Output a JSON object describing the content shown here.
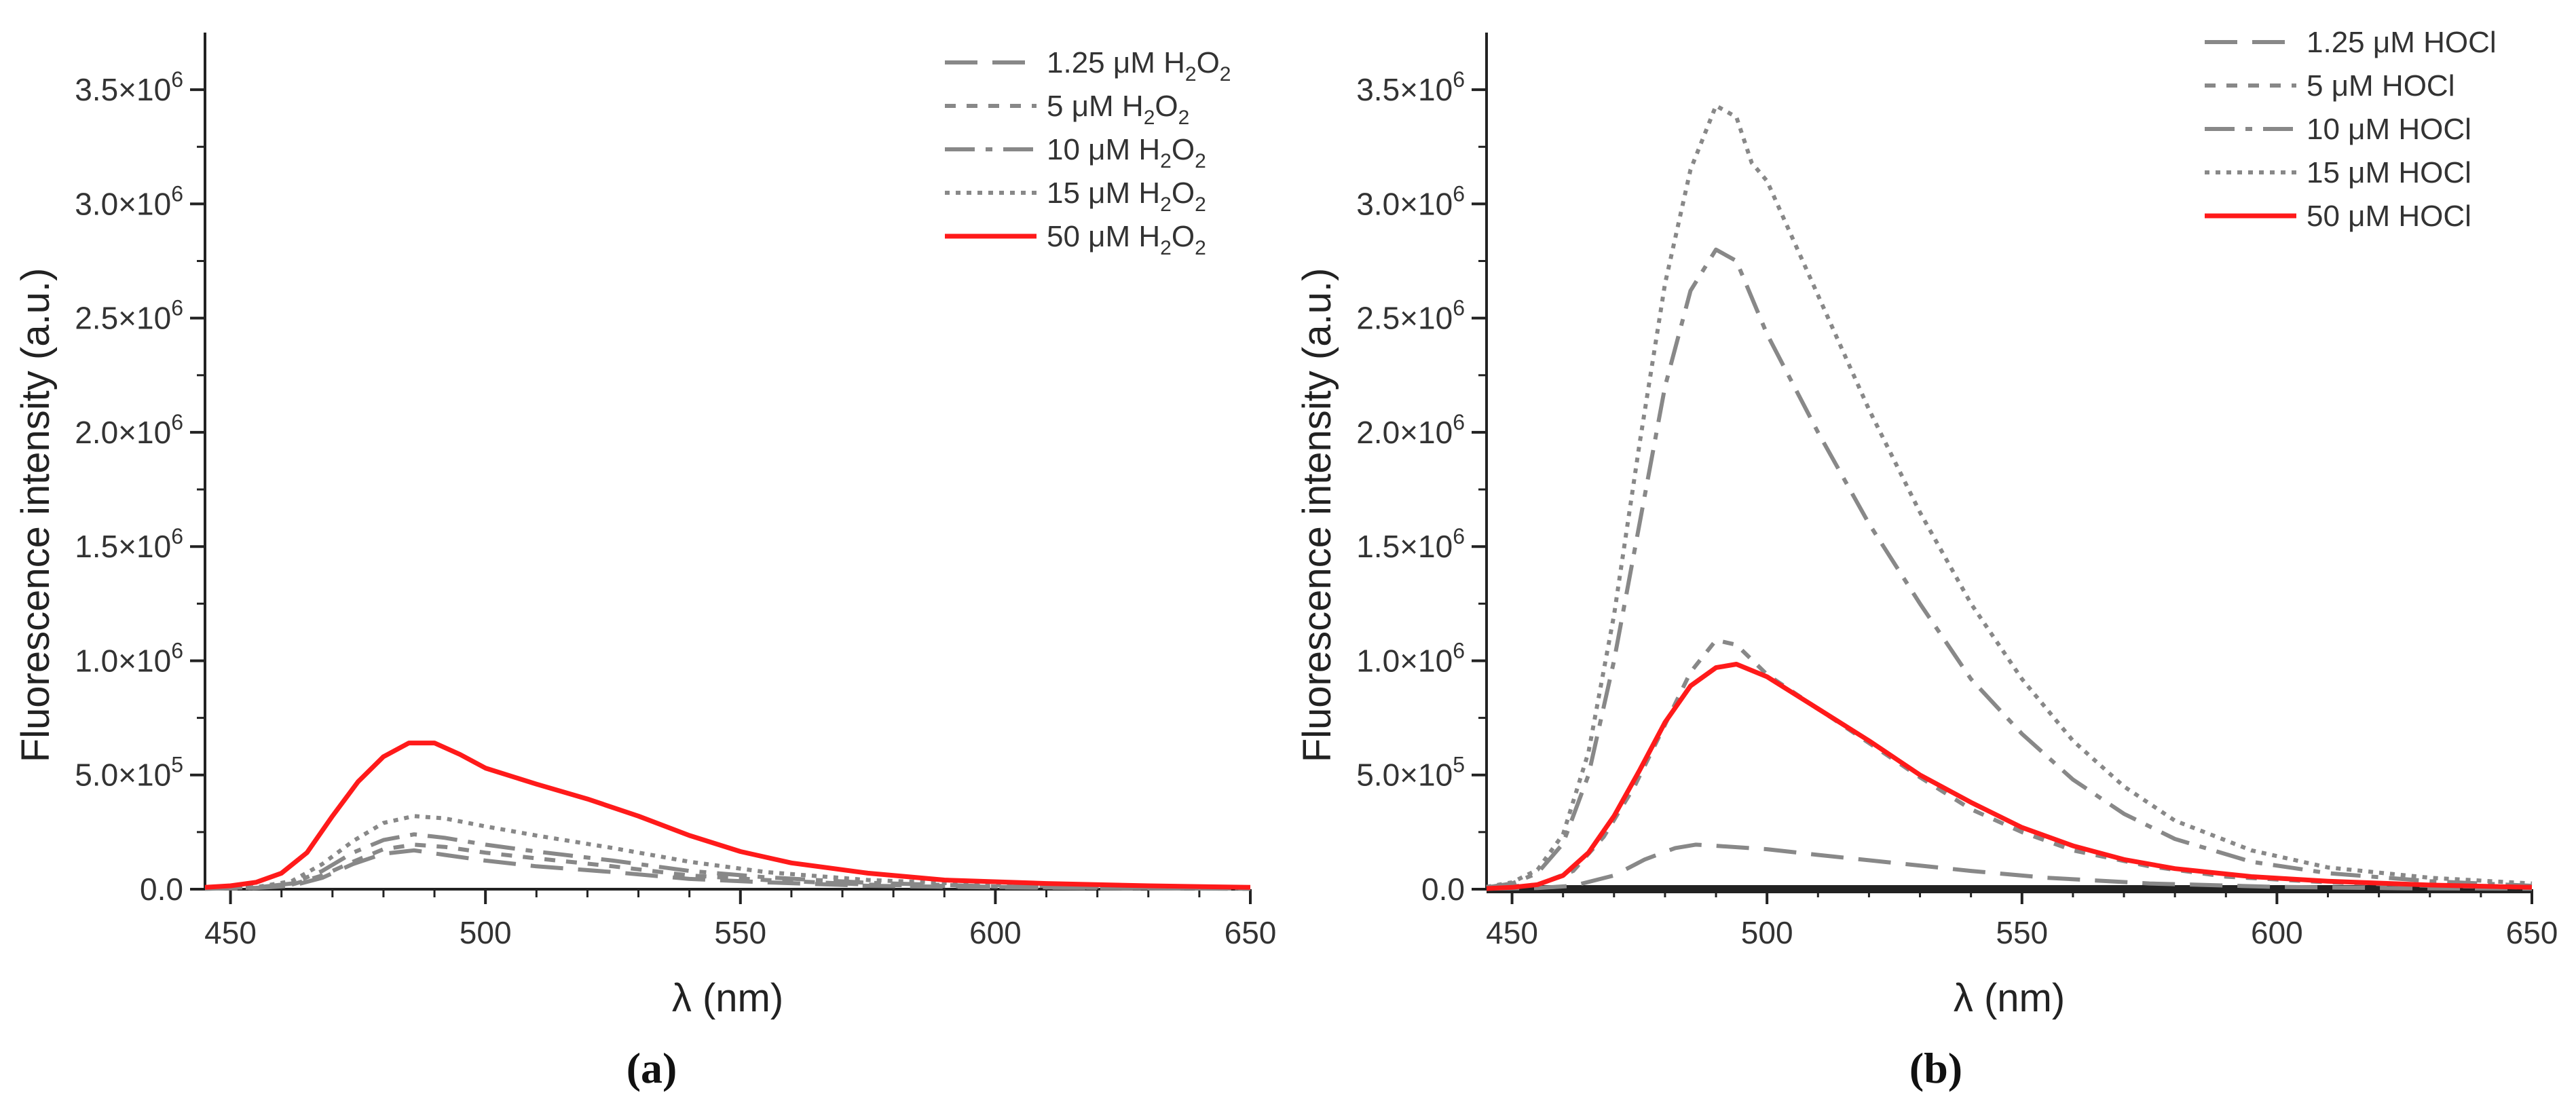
{
  "chart_data": [
    {
      "panel": "(a)",
      "type": "line",
      "title": "",
      "xlabel": "λ (nm)",
      "ylabel": "Fluorescence intensity (a.u.)",
      "xlim": [
        445,
        650
      ],
      "ylim": [
        0,
        3750000
      ],
      "x_ticks": [
        450,
        500,
        550,
        600,
        650
      ],
      "x_tick_labels": [
        "450",
        "500",
        "550",
        "600",
        "650"
      ],
      "y_ticks": [
        0,
        500000,
        1000000,
        1500000,
        2000000,
        2500000,
        3000000,
        3500000
      ],
      "y_tick_mantissas": [
        "0.0",
        "5.0×10",
        "1.0×10",
        "1.5×10",
        "2.0×10",
        "2.5×10",
        "3.0×10",
        "3.5×10"
      ],
      "y_tick_exponents": [
        "",
        "5",
        "6",
        "6",
        "6",
        "6",
        "6",
        "6"
      ],
      "legend_position": "top-right",
      "series": [
        {
          "name": "1.25 μM H2O2",
          "label_parts": [
            "1.25 μM H",
            "2",
            "O",
            "2"
          ],
          "style": "dash",
          "color": "#888888",
          "points": [
            [
              445,
              2000
            ],
            [
              455,
              5000
            ],
            [
              462,
              15000
            ],
            [
              468,
              50000
            ],
            [
              474,
              110000
            ],
            [
              480,
              155000
            ],
            [
              486,
              170000
            ],
            [
              492,
              150000
            ],
            [
              500,
              125000
            ],
            [
              510,
              100000
            ],
            [
              525,
              75000
            ],
            [
              540,
              45000
            ],
            [
              555,
              30000
            ],
            [
              575,
              15000
            ],
            [
              600,
              8000
            ],
            [
              625,
              4000
            ],
            [
              650,
              2000
            ]
          ]
        },
        {
          "name": "5 μM H2O2",
          "label_parts": [
            "5 μM H",
            "2",
            "O",
            "2"
          ],
          "style": "shortdash",
          "color": "#888888",
          "points": [
            [
              445,
              2000
            ],
            [
              455,
              6000
            ],
            [
              462,
              20000
            ],
            [
              468,
              60000
            ],
            [
              474,
              120000
            ],
            [
              480,
              175000
            ],
            [
              486,
              195000
            ],
            [
              492,
              185000
            ],
            [
              500,
              160000
            ],
            [
              510,
              135000
            ],
            [
              525,
              100000
            ],
            [
              540,
              60000
            ],
            [
              555,
              40000
            ],
            [
              575,
              20000
            ],
            [
              600,
              10000
            ],
            [
              625,
              5000
            ],
            [
              650,
              2000
            ]
          ]
        },
        {
          "name": "10 μM H2O2",
          "label_parts": [
            "10 μM H",
            "2",
            "O",
            "2"
          ],
          "style": "dashdot",
          "color": "#888888",
          "points": [
            [
              445,
              2000
            ],
            [
              455,
              7000
            ],
            [
              462,
              25000
            ],
            [
              468,
              80000
            ],
            [
              474,
              160000
            ],
            [
              480,
              215000
            ],
            [
              486,
              240000
            ],
            [
              492,
              225000
            ],
            [
              500,
              195000
            ],
            [
              510,
              165000
            ],
            [
              525,
              125000
            ],
            [
              540,
              80000
            ],
            [
              555,
              52000
            ],
            [
              575,
              28000
            ],
            [
              600,
              12000
            ],
            [
              625,
              6000
            ],
            [
              650,
              2500
            ]
          ]
        },
        {
          "name": "15 μM H2O2",
          "label_parts": [
            "15 μM H",
            "2",
            "O",
            "2"
          ],
          "style": "dot",
          "color": "#888888",
          "points": [
            [
              445,
              3000
            ],
            [
              455,
              9000
            ],
            [
              462,
              35000
            ],
            [
              468,
              110000
            ],
            [
              474,
              210000
            ],
            [
              480,
              290000
            ],
            [
              486,
              320000
            ],
            [
              492,
              310000
            ],
            [
              500,
              275000
            ],
            [
              510,
              235000
            ],
            [
              525,
              180000
            ],
            [
              540,
              120000
            ],
            [
              555,
              75000
            ],
            [
              575,
              40000
            ],
            [
              600,
              18000
            ],
            [
              625,
              9000
            ],
            [
              650,
              4000
            ]
          ]
        },
        {
          "name": "50 μM H2O2",
          "label_parts": [
            "50 μM H",
            "2",
            "O",
            "2"
          ],
          "style": "solid",
          "color": "#ff1a1a",
          "points": [
            [
              445,
              8000
            ],
            [
              450,
              15000
            ],
            [
              455,
              30000
            ],
            [
              460,
              70000
            ],
            [
              465,
              160000
            ],
            [
              470,
              320000
            ],
            [
              475,
              470000
            ],
            [
              480,
              580000
            ],
            [
              485,
              640000
            ],
            [
              490,
              640000
            ],
            [
              495,
              590000
            ],
            [
              500,
              530000
            ],
            [
              510,
              460000
            ],
            [
              520,
              395000
            ],
            [
              530,
              320000
            ],
            [
              540,
              235000
            ],
            [
              550,
              165000
            ],
            [
              560,
              115000
            ],
            [
              575,
              70000
            ],
            [
              590,
              40000
            ],
            [
              610,
              25000
            ],
            [
              630,
              15000
            ],
            [
              650,
              8000
            ]
          ]
        }
      ]
    },
    {
      "panel": "(b)",
      "type": "line",
      "title": "",
      "xlabel": "λ (nm)",
      "ylabel": "Fluorescence intensity (a.u.)",
      "xlim": [
        445,
        650
      ],
      "ylim": [
        0,
        3750000
      ],
      "x_ticks": [
        450,
        500,
        550,
        600,
        650
      ],
      "x_tick_labels": [
        "450",
        "500",
        "550",
        "600",
        "650"
      ],
      "y_ticks": [
        0,
        500000,
        1000000,
        1500000,
        2000000,
        2500000,
        3000000,
        3500000
      ],
      "y_tick_mantissas": [
        "0.0",
        "5.0×10",
        "1.0×10",
        "1.5×10",
        "2.0×10",
        "2.5×10",
        "3.0×10",
        "3.5×10"
      ],
      "y_tick_exponents": [
        "",
        "5",
        "6",
        "6",
        "6",
        "6",
        "6",
        "6"
      ],
      "legend_position": "top-right",
      "series": [
        {
          "name": "1.25 μM HOCl",
          "label_parts": [
            "1.25 μM HOCl"
          ],
          "style": "dash",
          "color": "#888888",
          "points": [
            [
              445,
              2000
            ],
            [
              455,
              5000
            ],
            [
              462,
              15000
            ],
            [
              470,
              60000
            ],
            [
              476,
              130000
            ],
            [
              482,
              180000
            ],
            [
              486,
              195000
            ],
            [
              490,
              190000
            ],
            [
              500,
              175000
            ],
            [
              510,
              150000
            ],
            [
              525,
              115000
            ],
            [
              540,
              80000
            ],
            [
              555,
              50000
            ],
            [
              575,
              25000
            ],
            [
              600,
              10000
            ],
            [
              625,
              4000
            ],
            [
              650,
              2000
            ]
          ]
        },
        {
          "name": "5 μM HOCl",
          "label_parts": [
            "5 μM HOCl"
          ],
          "style": "shortdash",
          "color": "#888888",
          "points": [
            [
              445,
              5000
            ],
            [
              455,
              20000
            ],
            [
              462,
              80000
            ],
            [
              468,
              230000
            ],
            [
              474,
              450000
            ],
            [
              480,
              720000
            ],
            [
              485,
              950000
            ],
            [
              490,
              1090000
            ],
            [
              494,
              1070000
            ],
            [
              500,
              940000
            ],
            [
              510,
              790000
            ],
            [
              520,
              640000
            ],
            [
              530,
              490000
            ],
            [
              540,
              350000
            ],
            [
              550,
              250000
            ],
            [
              560,
              170000
            ],
            [
              575,
              100000
            ],
            [
              590,
              55000
            ],
            [
              610,
              30000
            ],
            [
              630,
              15000
            ],
            [
              650,
              7000
            ]
          ]
        },
        {
          "name": "10 μM HOCl",
          "label_parts": [
            "10 μM HOCl"
          ],
          "style": "dashdot",
          "color": "#888888",
          "points": [
            [
              445,
              8000
            ],
            [
              450,
              25000
            ],
            [
              455,
              70000
            ],
            [
              460,
              200000
            ],
            [
              465,
              500000
            ],
            [
              470,
              1000000
            ],
            [
              475,
              1600000
            ],
            [
              480,
              2200000
            ],
            [
              485,
              2620000
            ],
            [
              490,
              2800000
            ],
            [
              494,
              2750000
            ],
            [
              500,
              2430000
            ],
            [
              510,
              2000000
            ],
            [
              520,
              1600000
            ],
            [
              530,
              1250000
            ],
            [
              540,
              920000
            ],
            [
              550,
              680000
            ],
            [
              560,
              480000
            ],
            [
              570,
              330000
            ],
            [
              580,
              220000
            ],
            [
              595,
              120000
            ],
            [
              610,
              70000
            ],
            [
              630,
              35000
            ],
            [
              650,
              15000
            ]
          ]
        },
        {
          "name": "15 μM HOCl",
          "label_parts": [
            "15 μM HOCl"
          ],
          "style": "dot",
          "color": "#888888",
          "points": [
            [
              445,
              10000
            ],
            [
              450,
              30000
            ],
            [
              455,
              85000
            ],
            [
              460,
              240000
            ],
            [
              465,
              600000
            ],
            [
              470,
              1200000
            ],
            [
              475,
              1950000
            ],
            [
              480,
              2650000
            ],
            [
              485,
              3150000
            ],
            [
              490,
              3430000
            ],
            [
              494,
              3380000
            ],
            [
              497,
              3180000
            ],
            [
              500,
              3100000
            ],
            [
              510,
              2600000
            ],
            [
              520,
              2100000
            ],
            [
              530,
              1650000
            ],
            [
              540,
              1250000
            ],
            [
              550,
              920000
            ],
            [
              560,
              650000
            ],
            [
              570,
              450000
            ],
            [
              580,
              300000
            ],
            [
              595,
              170000
            ],
            [
              610,
              95000
            ],
            [
              630,
              50000
            ],
            [
              650,
              25000
            ]
          ]
        },
        {
          "name": "50 μM HOCl",
          "label_parts": [
            "50 μM HOCl"
          ],
          "style": "solid",
          "color": "#ff1a1a",
          "points": [
            [
              445,
              3000
            ],
            [
              450,
              8000
            ],
            [
              455,
              20000
            ],
            [
              460,
              60000
            ],
            [
              465,
              160000
            ],
            [
              470,
              320000
            ],
            [
              475,
              520000
            ],
            [
              480,
              730000
            ],
            [
              485,
              890000
            ],
            [
              490,
              970000
            ],
            [
              494,
              985000
            ],
            [
              500,
              930000
            ],
            [
              510,
              790000
            ],
            [
              520,
              650000
            ],
            [
              530,
              500000
            ],
            [
              540,
              380000
            ],
            [
              550,
              270000
            ],
            [
              560,
              190000
            ],
            [
              570,
              130000
            ],
            [
              580,
              90000
            ],
            [
              595,
              55000
            ],
            [
              610,
              35000
            ],
            [
              630,
              18000
            ],
            [
              650,
              8000
            ]
          ]
        }
      ]
    }
  ]
}
